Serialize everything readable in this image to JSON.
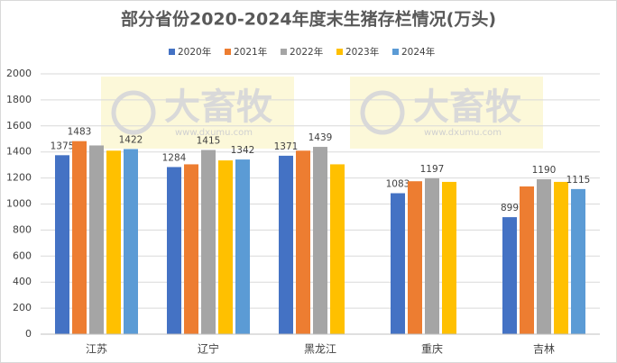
{
  "chart_data": {
    "type": "bar",
    "title": "部分省份2020-2024年度末生猪存栏情况(万头)",
    "categories": [
      "江苏",
      "辽宁",
      "黑龙江",
      "重庆",
      "吉林"
    ],
    "series": [
      {
        "name": "2020年",
        "color": "#4472c4",
        "values": [
          1375,
          1284,
          1371,
          1083,
          899
        ],
        "data_labels": [
          1375,
          1284,
          1371,
          1083,
          899
        ]
      },
      {
        "name": "2021年",
        "color": "#ed7d31",
        "values": [
          1483,
          1305,
          1410,
          1175,
          1135
        ],
        "data_labels": [
          1483,
          null,
          null,
          null,
          null
        ]
      },
      {
        "name": "2022年",
        "color": "#a5a5a5",
        "values": [
          1450,
          1415,
          1439,
          1197,
          1190
        ],
        "data_labels": [
          null,
          1415,
          1439,
          1197,
          1190
        ]
      },
      {
        "name": "2023年",
        "color": "#ffc000",
        "values": [
          1410,
          1335,
          1305,
          1170,
          1170
        ],
        "data_labels": [
          null,
          null,
          null,
          null,
          null
        ]
      },
      {
        "name": "2024年",
        "color": "#5b9bd5",
        "values": [
          1422,
          1342,
          null,
          null,
          1115
        ],
        "data_labels": [
          1422,
          1342,
          null,
          null,
          1115
        ]
      }
    ],
    "ylim": [
      0,
      2000
    ],
    "yticks": [
      0,
      200,
      400,
      600,
      800,
      1000,
      1200,
      1400,
      1600,
      1800,
      2000
    ],
    "grid": true,
    "watermark": {
      "brand": "大畜牧",
      "url": "www.dxumu.com"
    }
  }
}
